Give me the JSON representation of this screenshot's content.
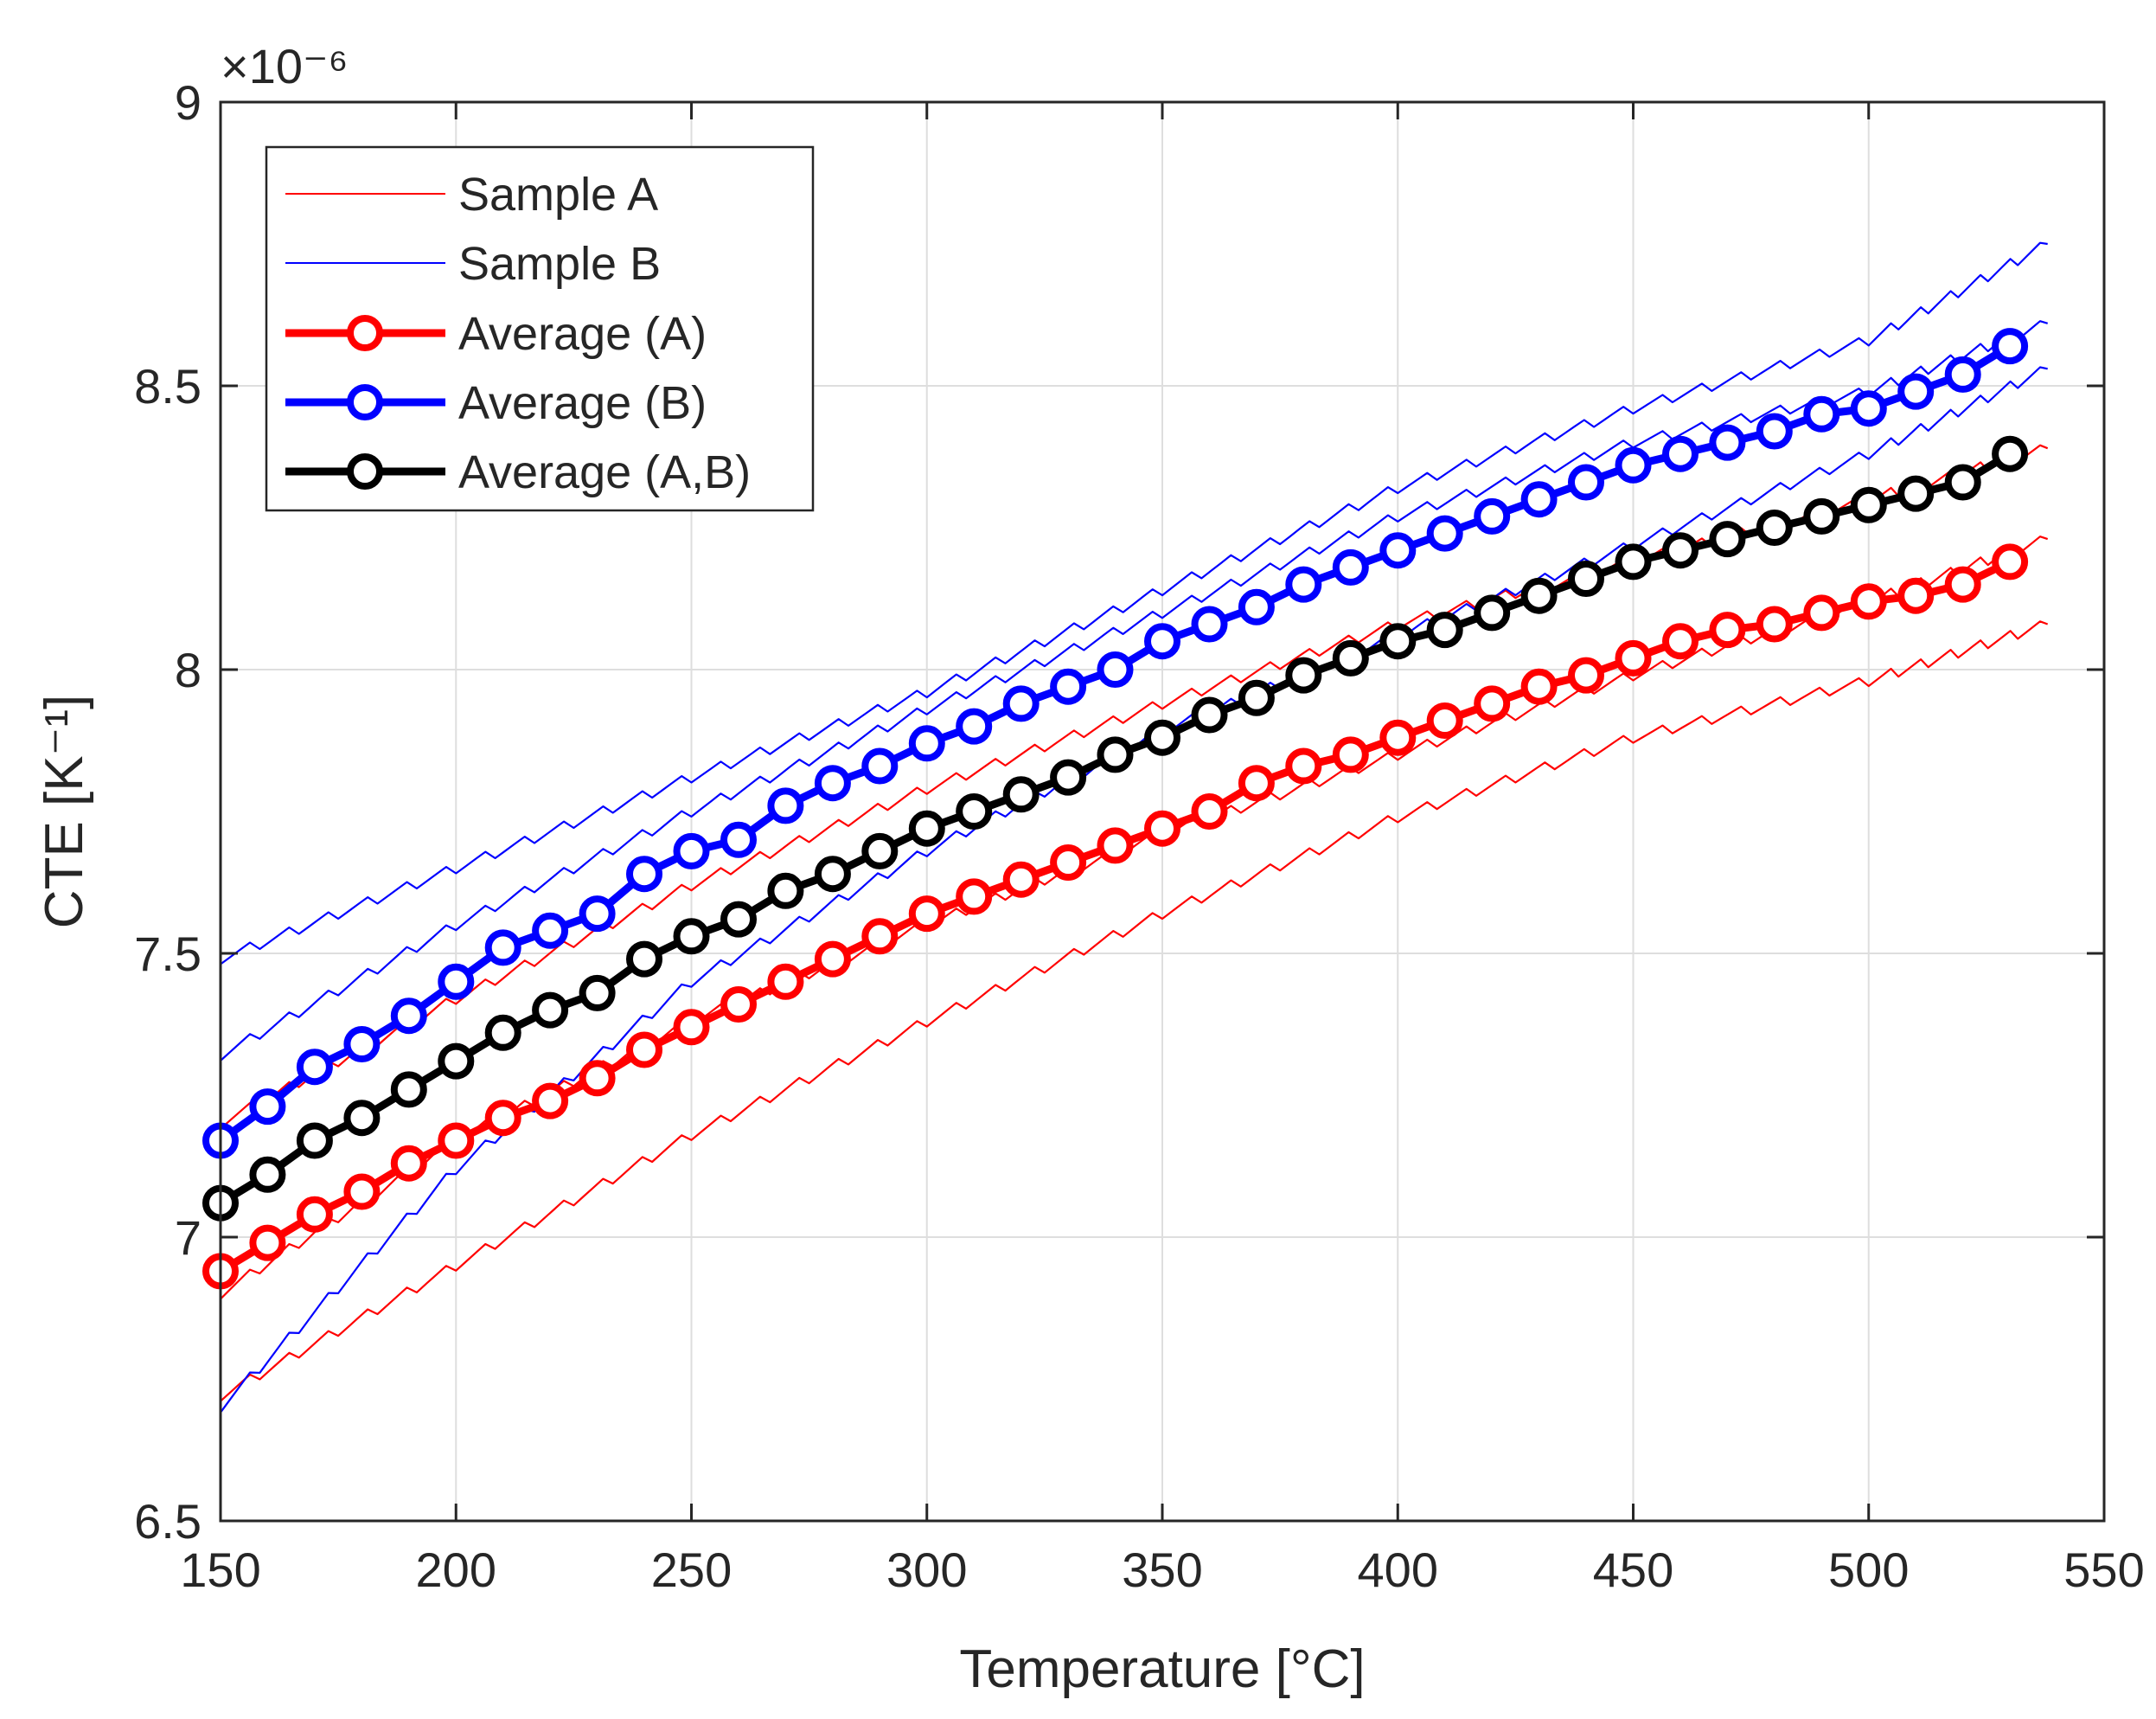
{
  "chart_data": {
    "type": "line",
    "title": "",
    "xlabel": "Temperature [°C]",
    "ylabel": "CTE [K⁻¹]",
    "y_exponent": "×10⁻⁶",
    "xlim": [
      150,
      550
    ],
    "ylim": [
      6.5,
      9
    ],
    "xticks": [
      150,
      200,
      250,
      300,
      350,
      400,
      450,
      500,
      550
    ],
    "yticks": [
      6.5,
      7,
      7.5,
      8,
      8.5,
      9
    ],
    "xtick_labels": [
      "150",
      "200",
      "250",
      "300",
      "350",
      "400",
      "450",
      "500",
      "550"
    ],
    "ytick_labels": [
      "6.5",
      "7",
      "7.5",
      "8",
      "8.5",
      "9"
    ],
    "grid": true,
    "legend_position": "top-left",
    "legend": [
      "Sample A",
      "Sample B",
      "Average (A)",
      "Average (B)",
      "Average (A,B)"
    ],
    "series": [
      {
        "name": "Sample A",
        "color": "#ff0000",
        "style": "thin",
        "curves": [
          {
            "x": [
              150,
              200,
              250,
              300,
              350,
              400,
              450,
              500,
              538
            ],
            "y": [
              7.2,
              7.42,
              7.62,
              7.79,
              7.94,
              8.08,
              8.19,
              8.3,
              8.39
            ]
          },
          {
            "x": [
              150,
              200,
              250,
              300,
              350,
              400,
              450,
              500,
              538
            ],
            "y": [
              6.9,
              7.17,
              7.38,
              7.55,
              7.71,
              7.85,
              7.99,
              8.12,
              8.23
            ]
          },
          {
            "x": [
              150,
              200,
              250,
              300,
              350,
              400,
              450,
              500,
              538
            ],
            "y": [
              6.72,
              6.95,
              7.18,
              7.38,
              7.57,
              7.74,
              7.88,
              7.98,
              8.08
            ]
          }
        ]
      },
      {
        "name": "Sample B",
        "color": "#0000ff",
        "style": "thin",
        "curves": [
          {
            "x": [
              150,
              200,
              250,
              300,
              350,
              400,
              450,
              500,
              538
            ],
            "y": [
              7.49,
              7.65,
              7.81,
              7.96,
              8.14,
              8.32,
              8.46,
              8.58,
              8.75
            ]
          },
          {
            "x": [
              150,
              200,
              250,
              300,
              350,
              400,
              450,
              500,
              538
            ],
            "y": [
              7.32,
              7.55,
              7.75,
              7.93,
              8.1,
              8.27,
              8.4,
              8.49,
              8.61
            ]
          },
          {
            "x": [
              150,
              200,
              250,
              300,
              350,
              400,
              450,
              500,
              538
            ],
            "y": [
              6.7,
              7.12,
              7.45,
              7.68,
              7.89,
              8.06,
              8.22,
              8.38,
              8.53
            ]
          }
        ]
      },
      {
        "name": "Average (A)",
        "color": "#ff0000",
        "style": "thick-circles",
        "x": [
          150,
          160,
          170,
          180,
          190,
          200,
          210,
          220,
          230,
          240,
          250,
          260,
          270,
          280,
          290,
          300,
          310,
          320,
          330,
          340,
          350,
          360,
          370,
          380,
          390,
          400,
          410,
          420,
          430,
          440,
          450,
          460,
          470,
          480,
          490,
          500,
          510,
          520,
          530
        ],
        "y": [
          6.94,
          6.99,
          7.04,
          7.08,
          7.13,
          7.17,
          7.21,
          7.24,
          7.28,
          7.33,
          7.37,
          7.41,
          7.45,
          7.49,
          7.53,
          7.57,
          7.6,
          7.63,
          7.66,
          7.69,
          7.72,
          7.75,
          7.8,
          7.83,
          7.85,
          7.88,
          7.91,
          7.94,
          7.97,
          7.99,
          8.02,
          8.05,
          8.07,
          8.08,
          8.1,
          8.12,
          8.13,
          8.15,
          8.19
        ]
      },
      {
        "name": "Average (B)",
        "color": "#0000ff",
        "style": "thick-circles",
        "x": [
          150,
          160,
          170,
          180,
          190,
          200,
          210,
          220,
          230,
          240,
          250,
          260,
          270,
          280,
          290,
          300,
          310,
          320,
          330,
          340,
          350,
          360,
          370,
          380,
          390,
          400,
          410,
          420,
          430,
          440,
          450,
          460,
          470,
          480,
          490,
          500,
          510,
          520,
          530
        ],
        "y": [
          7.17,
          7.23,
          7.3,
          7.34,
          7.39,
          7.45,
          7.51,
          7.54,
          7.57,
          7.64,
          7.68,
          7.7,
          7.76,
          7.8,
          7.83,
          7.87,
          7.9,
          7.94,
          7.97,
          8.0,
          8.05,
          8.08,
          8.11,
          8.15,
          8.18,
          8.21,
          8.24,
          8.27,
          8.3,
          8.33,
          8.36,
          8.38,
          8.4,
          8.42,
          8.45,
          8.46,
          8.49,
          8.52,
          8.57
        ]
      },
      {
        "name": "Average (A,B)",
        "color": "#000000",
        "style": "thick-circles",
        "x": [
          150,
          160,
          170,
          180,
          190,
          200,
          210,
          220,
          230,
          240,
          250,
          260,
          270,
          280,
          290,
          300,
          310,
          320,
          330,
          340,
          350,
          360,
          370,
          380,
          390,
          400,
          410,
          420,
          430,
          440,
          450,
          460,
          470,
          480,
          490,
          500,
          510,
          520,
          530
        ],
        "y": [
          7.06,
          7.11,
          7.17,
          7.21,
          7.26,
          7.31,
          7.36,
          7.4,
          7.43,
          7.49,
          7.53,
          7.56,
          7.61,
          7.64,
          7.68,
          7.72,
          7.75,
          7.78,
          7.81,
          7.85,
          7.88,
          7.92,
          7.95,
          7.99,
          8.02,
          8.05,
          8.07,
          8.1,
          8.13,
          8.16,
          8.19,
          8.21,
          8.23,
          8.25,
          8.27,
          8.29,
          8.31,
          8.33,
          8.38
        ]
      }
    ]
  }
}
